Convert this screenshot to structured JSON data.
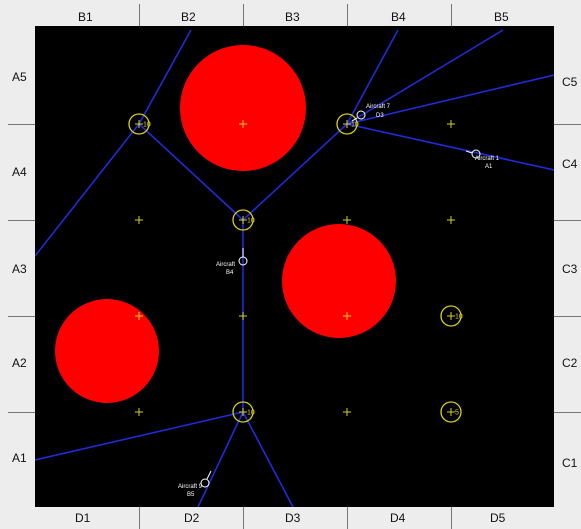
{
  "axes": {
    "top": [
      "B1",
      "B2",
      "B3",
      "B4",
      "B5"
    ],
    "bottom": [
      "D1",
      "D2",
      "D3",
      "D4",
      "D5"
    ],
    "left": [
      "A5",
      "A4",
      "A3",
      "A2",
      "A1"
    ],
    "right": [
      "C5",
      "C4",
      "C3",
      "C2",
      "C1"
    ]
  },
  "colors": {
    "background": "#000000",
    "frame": "#ededed",
    "route": "#1f2bd8",
    "obstacle": "#ff0000",
    "node": "#d8d020",
    "aircraft": "#ffffff"
  },
  "waypoint_icon": "plus",
  "node_values": [
    {
      "id": "n1",
      "value": "10"
    },
    {
      "id": "n2",
      "value": "10"
    },
    {
      "id": "n3",
      "value": "10"
    },
    {
      "id": "n4",
      "value": "10"
    },
    {
      "id": "n5",
      "value": "10"
    },
    {
      "id": "n6",
      "value": "5"
    }
  ],
  "aircraft": [
    {
      "name": "Aircraft 7",
      "code": "D3"
    },
    {
      "name": "Aircraft 1",
      "code": "A1"
    },
    {
      "name": "Aircraft",
      "code": "B4"
    },
    {
      "name": "Aircraft 9",
      "code": "B5"
    }
  ]
}
